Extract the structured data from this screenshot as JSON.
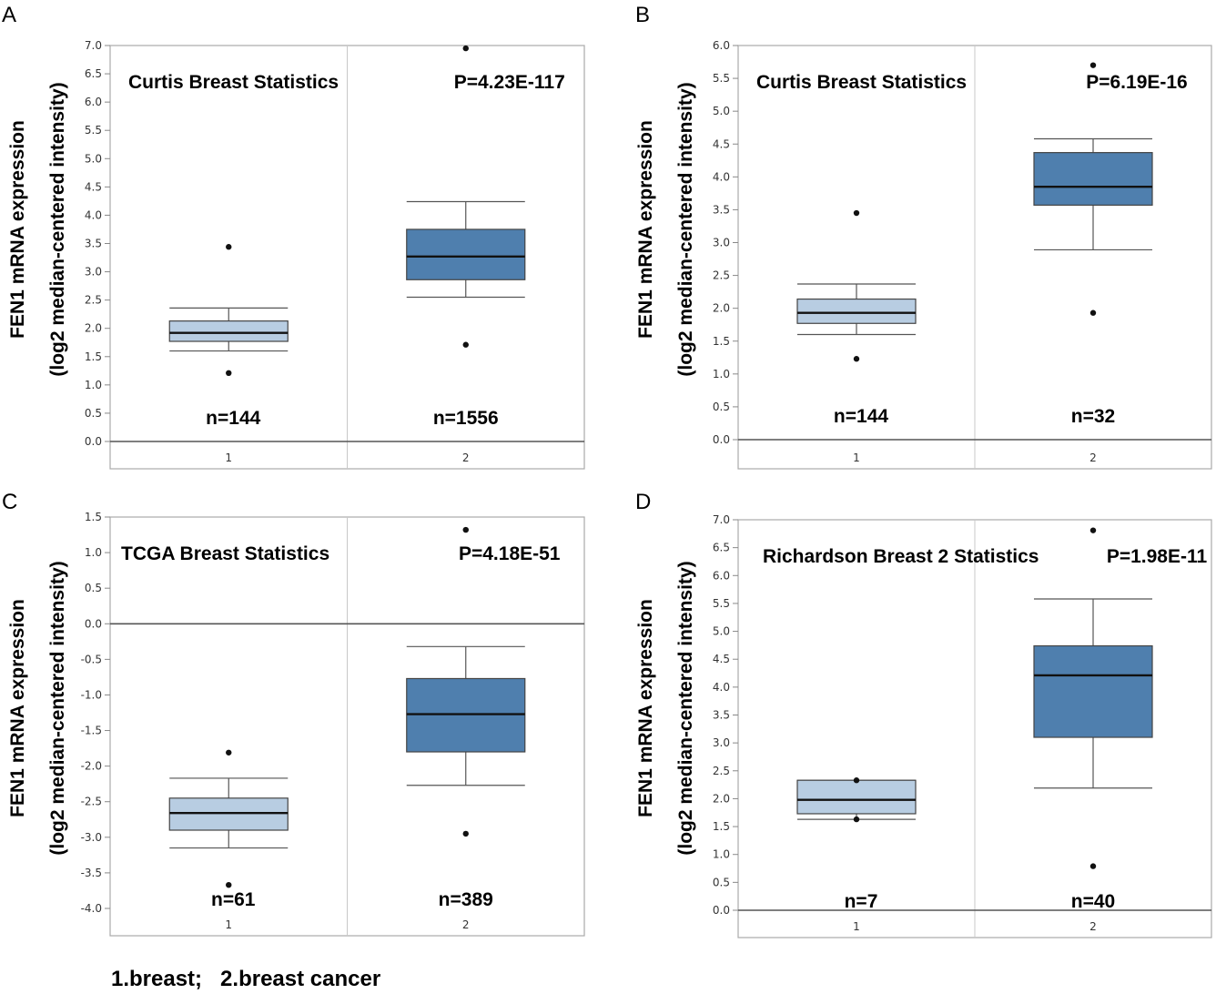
{
  "figure_caption": "1.breast;   2.breast cancer",
  "colors": {
    "normal_box": "#b8cde2",
    "cancer_box": "#4f7fae",
    "axis": "#555555",
    "divider": "#aaaaaa",
    "text": "#000000"
  },
  "chart_data": [
    {
      "panel": "A",
      "type": "box",
      "title": "Curtis Breast Statistics",
      "pvalue": "P=4.23E-117",
      "ylabel": "FEN1 mRNA expression",
      "ylabel2": "(log2 median-centered intensity)",
      "ylim": [
        0,
        7
      ],
      "yticks": [
        "0.0",
        "0.5",
        "1.0",
        "1.5",
        "2.0",
        "2.5",
        "3.0",
        "3.5",
        "4.0",
        "4.5",
        "5.0",
        "5.5",
        "6.0",
        "6.5",
        "7.0"
      ],
      "zero_line": 0,
      "categories": [
        "1",
        "2"
      ],
      "groups": [
        {
          "name": "1",
          "n": "n=144",
          "whisker_low": 1.6,
          "q1": 1.77,
          "median": 1.92,
          "q3": 2.13,
          "whisker_high": 2.36,
          "outliers": [
            3.44,
            1.21
          ]
        },
        {
          "name": "2",
          "n": "n=1556",
          "whisker_low": 2.55,
          "q1": 2.86,
          "median": 3.27,
          "q3": 3.75,
          "whisker_high": 4.24,
          "outliers": [
            6.95,
            1.71
          ]
        }
      ]
    },
    {
      "panel": "B",
      "type": "box",
      "title": "Curtis Breast Statistics",
      "pvalue": "P=6.19E-16",
      "ylabel": "FEN1 mRNA expression",
      "ylabel2": "(log2 median-centered intensity)",
      "ylim": [
        0,
        6
      ],
      "yticks": [
        "0.0",
        "0.5",
        "1.0",
        "1.5",
        "2.0",
        "2.5",
        "3.0",
        "3.5",
        "4.0",
        "4.5",
        "5.0",
        "5.5",
        "6.0"
      ],
      "zero_line": 0,
      "categories": [
        "1",
        "2"
      ],
      "groups": [
        {
          "name": "1",
          "n": "n=144",
          "whisker_low": 1.6,
          "q1": 1.77,
          "median": 1.93,
          "q3": 2.14,
          "whisker_high": 2.37,
          "outliers": [
            3.45,
            1.23
          ]
        },
        {
          "name": "2",
          "n": "n=32",
          "whisker_low": 2.89,
          "q1": 3.57,
          "median": 3.85,
          "q3": 4.37,
          "whisker_high": 4.58,
          "outliers": [
            5.7,
            1.93
          ]
        }
      ]
    },
    {
      "panel": "C",
      "type": "box",
      "title": "TCGA Breast Statistics",
      "pvalue": "P=4.18E-51",
      "ylabel": "FEN1 mRNA expression",
      "ylabel2": "(log2 median-centered intensity)",
      "ylim": [
        -4,
        1.5
      ],
      "yticks": [
        "-4.0",
        "-3.5",
        "-3.0",
        "-2.5",
        "-2.0",
        "-1.5",
        "-1.0",
        "-0.5",
        "0.0",
        "0.5",
        "1.0",
        "1.5"
      ],
      "zero_line": 0,
      "categories": [
        "1",
        "2"
      ],
      "groups": [
        {
          "name": "1",
          "n": "n=61",
          "whisker_low": -3.15,
          "q1": -2.9,
          "median": -2.66,
          "q3": -2.45,
          "whisker_high": -2.17,
          "outliers": [
            -1.81,
            -3.67
          ]
        },
        {
          "name": "2",
          "n": "n=389",
          "whisker_low": -2.27,
          "q1": -1.8,
          "median": -1.27,
          "q3": -0.77,
          "whisker_high": -0.32,
          "outliers": [
            1.32,
            -2.95
          ]
        }
      ]
    },
    {
      "panel": "D",
      "type": "box",
      "title": "Richardson Breast 2 Statistics",
      "pvalue": "P=1.98E-11",
      "ylabel": "FEN1 mRNA expression",
      "ylabel2": "(log2 median-centered intensity)",
      "ylim": [
        0,
        7
      ],
      "yticks": [
        "0.0",
        "0.5",
        "1.0",
        "1.5",
        "2.0",
        "2.5",
        "3.0",
        "3.5",
        "4.0",
        "4.5",
        "5.0",
        "5.5",
        "6.0",
        "6.5",
        "7.0"
      ],
      "zero_line": 0,
      "categories": [
        "1",
        "2"
      ],
      "groups": [
        {
          "name": "1",
          "n": "n=7",
          "whisker_low": 1.63,
          "q1": 1.73,
          "median": 1.98,
          "q3": 2.33,
          "whisker_high": 2.33,
          "outliers": [
            2.33,
            1.63
          ]
        },
        {
          "name": "2",
          "n": "n=40",
          "whisker_low": 2.19,
          "q1": 3.1,
          "median": 4.21,
          "q3": 4.74,
          "whisker_high": 5.58,
          "outliers": [
            6.81,
            0.79
          ]
        }
      ]
    }
  ]
}
